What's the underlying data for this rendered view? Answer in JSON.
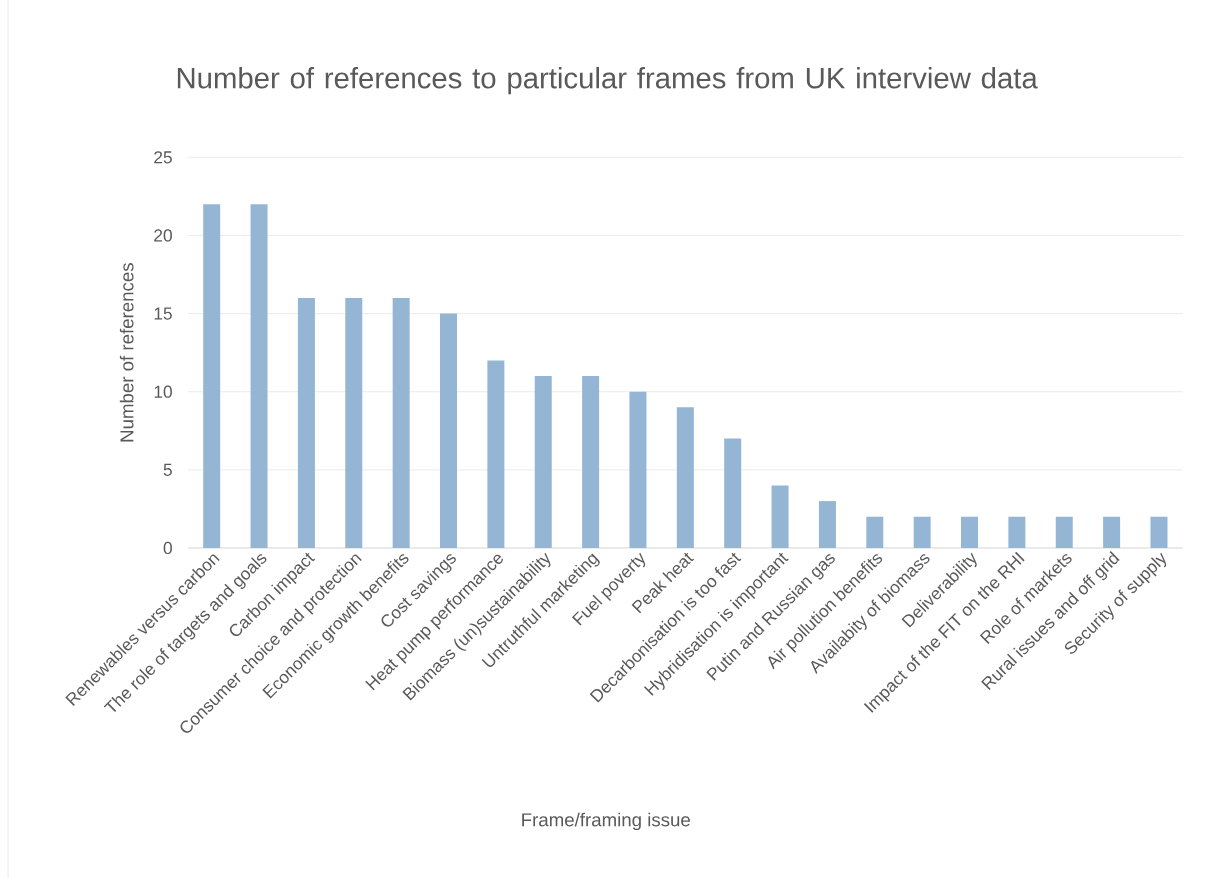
{
  "chart_data": {
    "type": "bar",
    "title": "Number of references to particular frames from UK interview data",
    "xlabel": "Frame/framing issue",
    "ylabel": "Number of references",
    "categories": [
      "Renewables versus carbon",
      "The role of targets and goals",
      "Carbon impact",
      "Consumer choice and protection",
      "Economic growth benefits",
      "Cost savings",
      "Heat pump performance",
      "Biomass (un)sustainability",
      "Untruthful marketing",
      "Fuel poverty",
      "Peak heat",
      "Decarbonisation is too fast",
      "Hybridisation is important",
      "Putin and Russian gas",
      "Air pollution benefits",
      "Availabity of biomass",
      "Deliverability",
      "Impact of the FIT on the RHI",
      "Role of markets",
      "Rural issues and off grid",
      "Security of supply"
    ],
    "values": [
      22,
      22,
      16,
      16,
      16,
      15,
      12,
      11,
      11,
      10,
      9,
      7,
      4,
      3,
      2,
      2,
      2,
      2,
      2,
      2,
      2
    ],
    "color": "#95b5d4",
    "ylim": [
      0,
      25
    ],
    "yticks": [
      0,
      5,
      10,
      15,
      20,
      25
    ],
    "grid": "y"
  }
}
